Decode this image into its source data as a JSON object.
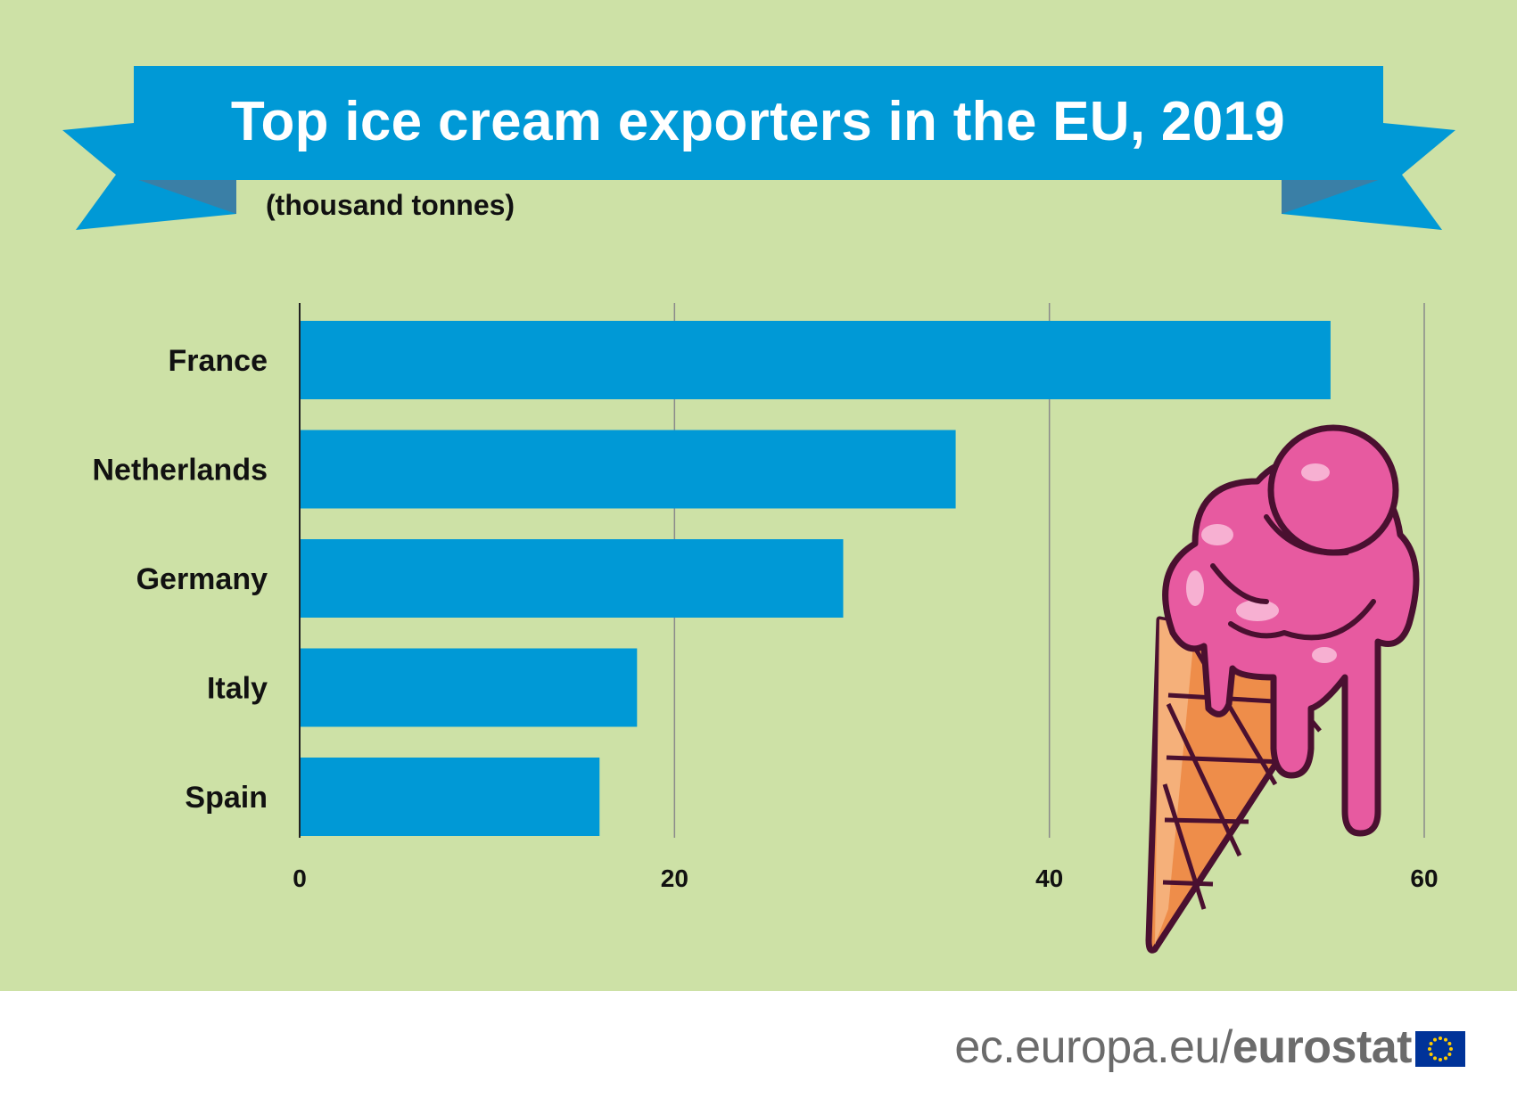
{
  "chart_data": {
    "type": "bar",
    "orientation": "horizontal",
    "title": "Top ice cream exporters in the EU, 2019",
    "subtitle": "(thousand tonnes)",
    "categories": [
      "France",
      "Netherlands",
      "Germany",
      "Italy",
      "Spain"
    ],
    "values": [
      55,
      35,
      29,
      18,
      16
    ],
    "xlim": [
      0,
      60
    ],
    "xticks": [
      0,
      20,
      40,
      60
    ],
    "grid": true,
    "bar_color": "#0099d6"
  },
  "footer": {
    "site": "ec.europa.eu/",
    "brand": "eurostat"
  },
  "colors": {
    "background": "#cde1a6",
    "ribbon": "#0099d6",
    "ribbon_dark": "#3a7fa6"
  },
  "icons": {
    "illustration": "ice-cream-cone-icon",
    "flag": "eu-flag-icon"
  }
}
